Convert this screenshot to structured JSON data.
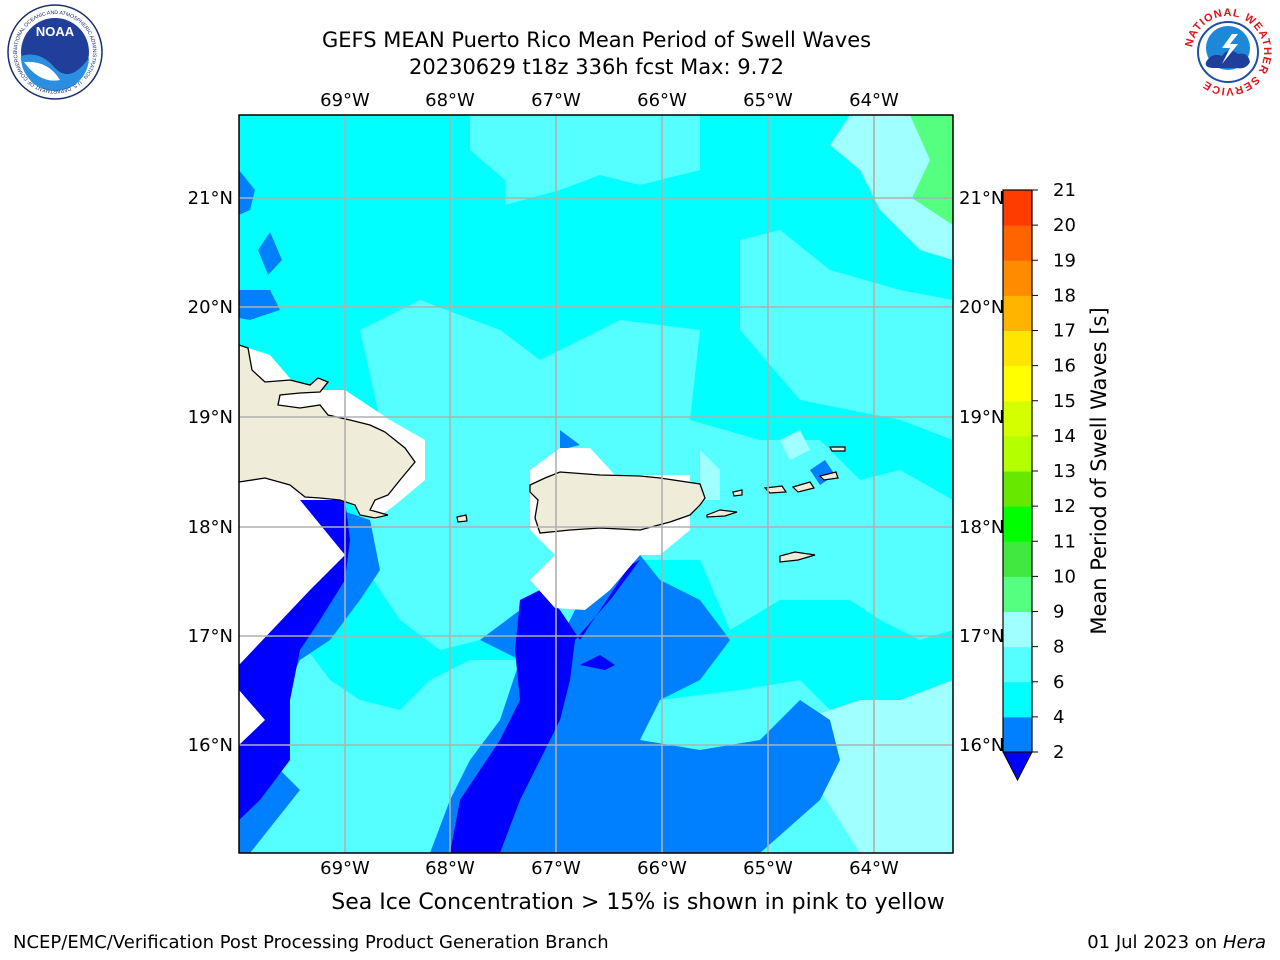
{
  "title_line1": "GEFS MEAN Puerto Rico Mean Period of Swell Waves",
  "title_line2": "20230629 t18z 336h fcst   Max: 9.72",
  "lon_labels": [
    "69°W",
    "68°W",
    "67°W",
    "66°W",
    "65°W",
    "64°W"
  ],
  "lat_labels": [
    "21°N",
    "20°N",
    "19°N",
    "18°N",
    "17°N",
    "16°N"
  ],
  "colorbar": {
    "label": "Mean Period of Swell Waves [s]",
    "ticks": [
      "21",
      "20",
      "19",
      "18",
      "17",
      "16",
      "15",
      "14",
      "13",
      "12",
      "11",
      "10",
      "9",
      "8",
      "6",
      "4",
      "2"
    ],
    "colors": [
      "#0000ff",
      "#0080ff",
      "#00ffff",
      "#55ffff",
      "#a0ffff",
      "#55ff80",
      "#40e840",
      "#00ff00",
      "#66e800",
      "#b4ff00",
      "#d4ff00",
      "#ffff00",
      "#ffe600",
      "#ffb400",
      "#ff8c00",
      "#ff6400",
      "#ff3c00",
      "#ff0000"
    ]
  },
  "caption": "Sea Ice Concentration > 15% is shown in pink to yellow",
  "footer_left": "NCEP/EMC/Verification Post Processing Product Generation Branch",
  "footer_date": "01 Jul 2023 on ",
  "footer_host": "Hera",
  "logos": {
    "noaa_text": "NOAA",
    "noaa_ring": "NATIONAL OCEANIC AND ATMOSPHERIC ADMINISTRATION · U.S. DEPARTMENT OF COMMERCE",
    "nws_ring": "NATIONAL WEATHER SERVICE"
  }
}
